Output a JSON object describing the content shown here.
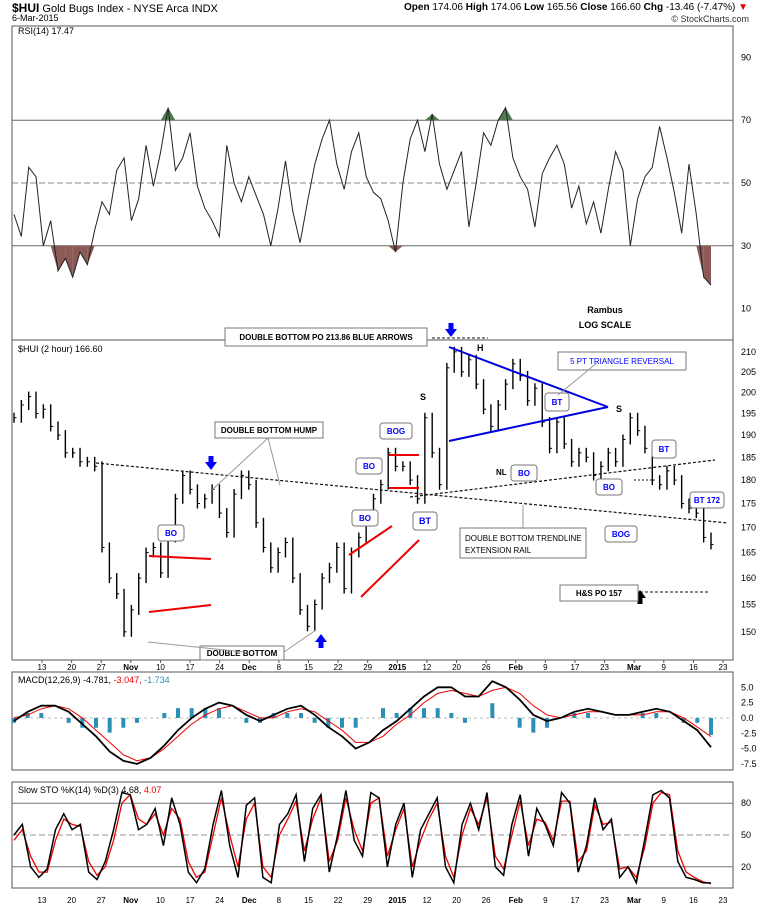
{
  "header": {
    "symbol": "$HUI",
    "name": "Gold Bugs Index - NYSE Arca INDX",
    "date": "6-Mar-2015",
    "open_label": "Open",
    "open": "174.06",
    "high_label": "High",
    "high": "174.06",
    "low_label": "Low",
    "low": "165.56",
    "close_label": "Close",
    "close": "166.60",
    "chg_label": "Chg",
    "chg": "-13.46 (-7.47%)",
    "watermark": "© StockCharts.com"
  },
  "colors": {
    "price": "#000000",
    "rsi_fill": "#8b5a55",
    "rsi_fill_high": "#4f7a4f",
    "trend_blue": "#0000dd",
    "trend_red": "#ee0000",
    "arrow_blue": "#0000ff",
    "macd_hist": "#2c8fb5",
    "signal": "#ee0000",
    "annotation_blue": "#0000ff"
  },
  "chart_data": [
    {
      "type": "line",
      "panel": "rsi",
      "legend": "RSI(14) 17.47",
      "ylim": [
        0,
        100
      ],
      "yticks": [
        10,
        30,
        50,
        70,
        90
      ],
      "reference_lines": [
        30,
        50,
        70
      ],
      "values": [
        40,
        33,
        55,
        52,
        30,
        38,
        22,
        26,
        20,
        28,
        24,
        35,
        44,
        40,
        54,
        58,
        38,
        45,
        62,
        49,
        60,
        74,
        54,
        58,
        66,
        49,
        42,
        38,
        33,
        62,
        50,
        44,
        52,
        46,
        40,
        30,
        42,
        57,
        41,
        31,
        44,
        56,
        64,
        70,
        56,
        48,
        60,
        66,
        52,
        47,
        45,
        38,
        28,
        50,
        64,
        70,
        60,
        72,
        56,
        48,
        54,
        60,
        36,
        50,
        66,
        62,
        70,
        74,
        58,
        52,
        48,
        36,
        53,
        58,
        62,
        56,
        42,
        49,
        37,
        44,
        34,
        48,
        60,
        54,
        30,
        45,
        52,
        55,
        68,
        58,
        47,
        34,
        56,
        40,
        20,
        17.47
      ]
    },
    {
      "type": "line",
      "panel": "price",
      "legend": "$HUI (2 hour) 166.60",
      "scale": "log",
      "ylim": [
        145,
        213
      ],
      "yticks": [
        150,
        155,
        160,
        165,
        170,
        175,
        180,
        185,
        190,
        195,
        200,
        205,
        210
      ],
      "x_tick_labels": [
        "13",
        "20",
        "27",
        "Nov",
        "10",
        "17",
        "24",
        "Dec",
        "8",
        "15",
        "22",
        "29",
        "2015",
        "12",
        "20",
        "26",
        "Feb",
        "9",
        "17",
        "23",
        "Mar",
        "9",
        "16",
        "23"
      ],
      "values": [
        194,
        197,
        199,
        195,
        196,
        192,
        190,
        186,
        186,
        184,
        184,
        183,
        166,
        160,
        157,
        150,
        154,
        160,
        165,
        166,
        161,
        168,
        176,
        181,
        178,
        175,
        176,
        178,
        173,
        169,
        177,
        181,
        179,
        171,
        166,
        162,
        165,
        167,
        160,
        154,
        151,
        155,
        160,
        162,
        166,
        158,
        165,
        168,
        172,
        176,
        179,
        186,
        183,
        183,
        180,
        176,
        194,
        186,
        179,
        206,
        210,
        205,
        208,
        202,
        196,
        192,
        197,
        202,
        207,
        204,
        198,
        201,
        193,
        187,
        193,
        188,
        184,
        186,
        185,
        181,
        183,
        186,
        184,
        189,
        194,
        191,
        187,
        180,
        179,
        182,
        180,
        175,
        174,
        173,
        168,
        166.6
      ],
      "annotations": [
        "DOUBLE BOTTOM PO 213.86 BLUE ARROWS",
        "DOUBLE BOTTOM HUMP",
        "DOUBLE BOTTOM",
        "DOUBLE BOTTOM TRENDLINE",
        "EXTENSION RAIL",
        "5 PT TRIANGLE REVERSAL",
        "NL",
        "H&S PO 157",
        "Rambus",
        "LOG SCALE",
        "H",
        "S",
        "S",
        "BO",
        "BO",
        "BO",
        "BO",
        "BO",
        "BOG",
        "BOG",
        "BT",
        "BT",
        "BT",
        "BT 172"
      ]
    },
    {
      "type": "line",
      "panel": "macd",
      "legend": "MACD(12,26,9)",
      "legend_values": [
        "-4.781",
        "-3.047",
        "-1.734"
      ],
      "yticks": [
        5.0,
        2.5,
        0.0,
        -2.5,
        -5.0,
        -7.5
      ],
      "ylim": [
        -8.5,
        7.5
      ],
      "series": [
        {
          "values": [
            -0.5,
            1.0,
            2.0,
            2.0,
            1.0,
            -1.0,
            -3.0,
            -5.5,
            -7.0,
            -7.5,
            -6.5,
            -4.5,
            -2.0,
            0.0,
            1.5,
            2.5,
            2.0,
            0.5,
            -0.5,
            0.5,
            1.5,
            2.0,
            0.5,
            -1.5,
            -3.0,
            -5.0,
            -4.0,
            -2.0,
            -0.5,
            1.5,
            3.5,
            5.0,
            5.0,
            3.5,
            3.5,
            6.0,
            5.0,
            3.0,
            0.5,
            -0.5,
            0.0,
            1.0,
            1.5,
            1.0,
            0.5,
            0.5,
            1.0,
            1.5,
            1.0,
            -0.5,
            -2.0,
            -4.781
          ]
        },
        {
          "values": [
            0.0,
            0.5,
            1.5,
            2.0,
            1.5,
            0.0,
            -2.0,
            -4.0,
            -6.0,
            -7.0,
            -6.5,
            -5.0,
            -3.0,
            -1.0,
            0.5,
            1.5,
            2.0,
            1.0,
            0.0,
            0.0,
            1.0,
            1.5,
            1.0,
            -0.5,
            -2.0,
            -4.0,
            -4.0,
            -3.0,
            -1.0,
            0.5,
            2.5,
            4.0,
            4.5,
            4.0,
            3.5,
            4.5,
            5.0,
            4.0,
            2.0,
            0.5,
            0.0,
            0.5,
            1.0,
            1.0,
            0.5,
            0.5,
            0.5,
            1.0,
            1.0,
            0.0,
            -1.5,
            -3.047
          ]
        }
      ]
    },
    {
      "type": "line",
      "panel": "sto",
      "legend": "Slow STO %K(14) %D(3)",
      "legend_values": [
        "4.68",
        "4.07"
      ],
      "yticks": [
        20,
        50,
        80
      ],
      "ylim": [
        0,
        100
      ],
      "series": [
        {
          "values": [
            50,
            60,
            20,
            10,
            18,
            55,
            70,
            55,
            60,
            15,
            8,
            25,
            55,
            90,
            88,
            55,
            60,
            75,
            40,
            85,
            60,
            15,
            5,
            18,
            60,
            92,
            40,
            10,
            78,
            85,
            10,
            5,
            60,
            70,
            88,
            25,
            75,
            88,
            15,
            50,
            92,
            45,
            30,
            90,
            85,
            20,
            60,
            80,
            10,
            55,
            70,
            85,
            20,
            5,
            60,
            80,
            55,
            90,
            20,
            12,
            60,
            88,
            30,
            75,
            60,
            40,
            90,
            80,
            15,
            40,
            85,
            55,
            65,
            10,
            20,
            5,
            45,
            88,
            92,
            85,
            25,
            10,
            8,
            5,
            4.68
          ]
        },
        {
          "values": [
            45,
            55,
            30,
            15,
            15,
            45,
            65,
            60,
            58,
            25,
            12,
            20,
            45,
            80,
            88,
            65,
            60,
            70,
            50,
            75,
            65,
            25,
            10,
            15,
            50,
            85,
            50,
            20,
            65,
            80,
            20,
            10,
            50,
            65,
            82,
            35,
            65,
            85,
            25,
            45,
            85,
            55,
            35,
            80,
            85,
            30,
            55,
            75,
            20,
            45,
            65,
            80,
            30,
            10,
            50,
            75,
            60,
            85,
            30,
            18,
            50,
            82,
            40,
            65,
            62,
            45,
            82,
            82,
            25,
            35,
            78,
            60,
            62,
            18,
            20,
            10,
            38,
            80,
            90,
            88,
            35,
            15,
            10,
            6,
            4.07
          ]
        }
      ]
    }
  ]
}
